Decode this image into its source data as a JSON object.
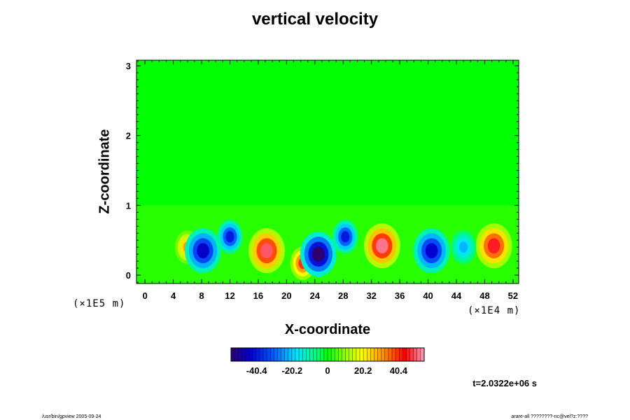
{
  "chart_data": {
    "type": "heatmap",
    "title": "vertical velocity",
    "xlabel": "X-coordinate",
    "ylabel": "Z-coordinate",
    "x_ticks": [
      "0",
      "4",
      "8",
      "12",
      "16",
      "20",
      "24",
      "28",
      "32",
      "36",
      "40",
      "44",
      "48",
      "52"
    ],
    "x_tick_values": [
      0,
      4,
      8,
      12,
      16,
      20,
      24,
      28,
      32,
      36,
      40,
      44,
      48,
      52
    ],
    "xlim": [
      -1.2,
      52.8
    ],
    "x_unit_label": "(×1E4 m)",
    "y_ticks": [
      "0",
      "1",
      "2",
      "3"
    ],
    "y_tick_values": [
      0,
      1,
      2,
      3
    ],
    "ylim": [
      -0.12,
      3.08
    ],
    "y_unit_label": "(×1E5 m)",
    "colorbar": {
      "ticks": [
        "-40.4",
        "-20.2",
        "0",
        "20.2",
        "40.4"
      ],
      "tick_values": [
        -40.4,
        -20.2,
        0,
        20.2,
        40.4
      ],
      "range": [
        -55,
        55
      ]
    },
    "time_label": "t=2.0322e+06 s",
    "features": [
      {
        "kind": "updraft",
        "x": 17.2,
        "z": 0.35,
        "value": 50
      },
      {
        "kind": "updraft",
        "x": 33.5,
        "z": 0.42,
        "value": 52
      },
      {
        "kind": "updraft",
        "x": 49.3,
        "z": 0.42,
        "value": 46
      },
      {
        "kind": "updraft",
        "x": 22.3,
        "z": 0.17,
        "value": 40
      },
      {
        "kind": "updraft",
        "x": 6.0,
        "z": 0.4,
        "value": 30
      },
      {
        "kind": "downdraft",
        "x": 8.2,
        "z": 0.35,
        "value": -45
      },
      {
        "kind": "downdraft",
        "x": 12.0,
        "z": 0.55,
        "value": -40
      },
      {
        "kind": "downdraft",
        "x": 24.5,
        "z": 0.3,
        "value": -55
      },
      {
        "kind": "downdraft",
        "x": 28.3,
        "z": 0.55,
        "value": -40
      },
      {
        "kind": "downdraft",
        "x": 40.5,
        "z": 0.35,
        "value": -44
      },
      {
        "kind": "downdraft",
        "x": 45.0,
        "z": 0.4,
        "value": -22
      }
    ]
  },
  "footer": {
    "left": "/usr/bin/gpview 2005-09-24",
    "right": "arare-all ????????-nc@vel?z:????"
  }
}
